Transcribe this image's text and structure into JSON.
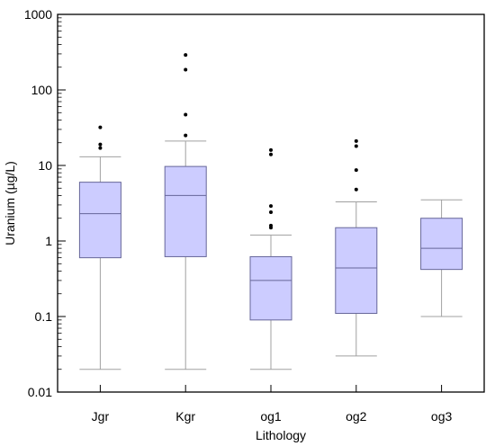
{
  "chart_data": {
    "type": "boxplot",
    "xlabel": "Lithology",
    "ylabel": "Uranium (µg/L)",
    "yscale": "log",
    "ylim": [
      0.01,
      1000
    ],
    "y_ticks": [
      0.01,
      0.1,
      1,
      10,
      100,
      1000
    ],
    "y_tick_labels": [
      "0.01",
      "0.1",
      "1",
      "10",
      "100",
      "1000"
    ],
    "grid": false,
    "box_color": "#ccccff",
    "box_edge_color": "#666699",
    "whisker_color": "#a0a0a0",
    "categories": [
      "Jgr",
      "Kgr",
      "og1",
      "og2",
      "og3"
    ],
    "boxes": [
      {
        "category": "Jgr",
        "min": 0.02,
        "q1": 0.6,
        "median": 2.3,
        "q3": 6.0,
        "max": 13,
        "outliers": [
          32,
          19,
          17
        ]
      },
      {
        "category": "Kgr",
        "min": 0.02,
        "q1": 0.62,
        "median": 4.0,
        "q3": 9.7,
        "max": 21,
        "outliers": [
          290,
          185,
          47,
          25
        ]
      },
      {
        "category": "og1",
        "min": 0.02,
        "q1": 0.09,
        "median": 0.3,
        "q3": 0.62,
        "max": 1.2,
        "outliers": [
          16,
          14,
          2.9,
          2.4,
          1.6,
          1.5
        ]
      },
      {
        "category": "og2",
        "min": 0.03,
        "q1": 0.11,
        "median": 0.44,
        "q3": 1.5,
        "max": 3.3,
        "outliers": [
          21,
          18,
          8.7,
          4.8
        ]
      },
      {
        "category": "og3",
        "min": 0.1,
        "q1": 0.42,
        "median": 0.8,
        "q3": 2.0,
        "max": 3.5,
        "outliers": []
      }
    ]
  }
}
